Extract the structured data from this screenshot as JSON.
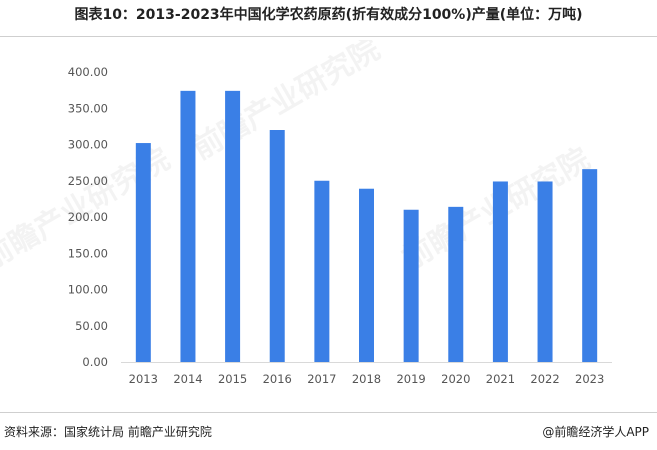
{
  "header": {
    "title": "图表10：2013-2023年中国化学农药原药(折有效成分100%)产量(单位：万吨)"
  },
  "footer": {
    "source": "资料来源：国家统计局 前瞻产业研究院",
    "brand": "@前瞻经济学人APP"
  },
  "watermark": {
    "text": "前瞻产业研究院"
  },
  "colors": {
    "bar": "#3a7fe6",
    "axis": "#d9d9d9"
  },
  "chart_data": {
    "type": "bar",
    "title": "图表10：2013-2023年中国化学农药原药(折有效成分100%)产量(单位：万吨)",
    "xlabel": "",
    "ylabel": "",
    "unit": "万吨",
    "categories": [
      "2013",
      "2014",
      "2015",
      "2016",
      "2017",
      "2018",
      "2019",
      "2020",
      "2021",
      "2022",
      "2023"
    ],
    "values": [
      302,
      374,
      374,
      320,
      250,
      239,
      210,
      214,
      249,
      249,
      266
    ],
    "ylim": [
      0,
      400
    ],
    "yticks": [
      "0.00",
      "50.00",
      "100.00",
      "150.00",
      "200.00",
      "250.00",
      "300.00",
      "350.00",
      "400.00"
    ],
    "grid": false,
    "legend": "none"
  }
}
